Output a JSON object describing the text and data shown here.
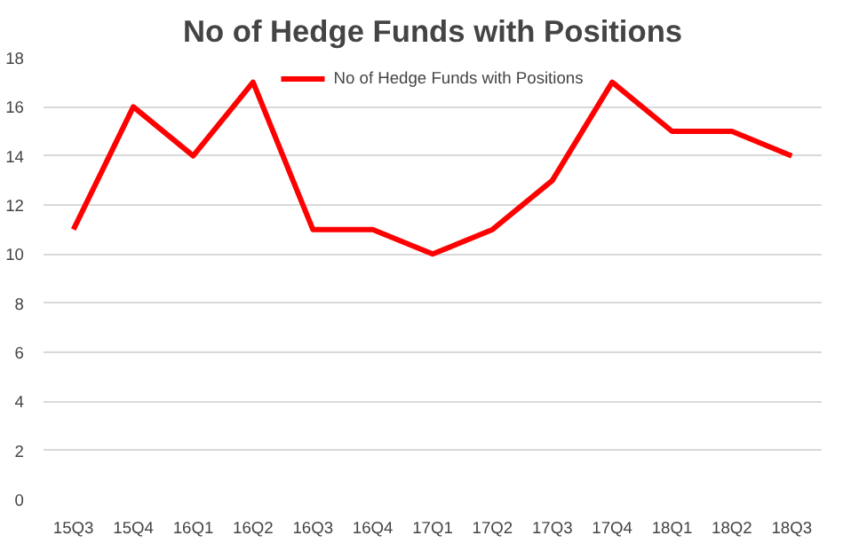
{
  "chart_data": {
    "type": "line",
    "title": "No of Hedge Funds with Positions",
    "categories": [
      "15Q3",
      "15Q4",
      "16Q1",
      "16Q2",
      "16Q3",
      "16Q4",
      "17Q1",
      "17Q2",
      "17Q3",
      "17Q4",
      "18Q1",
      "18Q2",
      "18Q3"
    ],
    "series": [
      {
        "name": "No of Hedge Funds with Positions",
        "color": "#ff0000",
        "values": [
          11,
          16,
          14,
          17,
          11,
          11,
          10,
          11,
          13,
          17,
          15,
          15,
          14
        ]
      }
    ],
    "ylim": [
      0,
      18
    ],
    "yticks": [
      0,
      2,
      4,
      6,
      8,
      10,
      12,
      14,
      16,
      18
    ],
    "grid": "y",
    "legend": "top",
    "marker": "none",
    "line_style": "solid"
  }
}
